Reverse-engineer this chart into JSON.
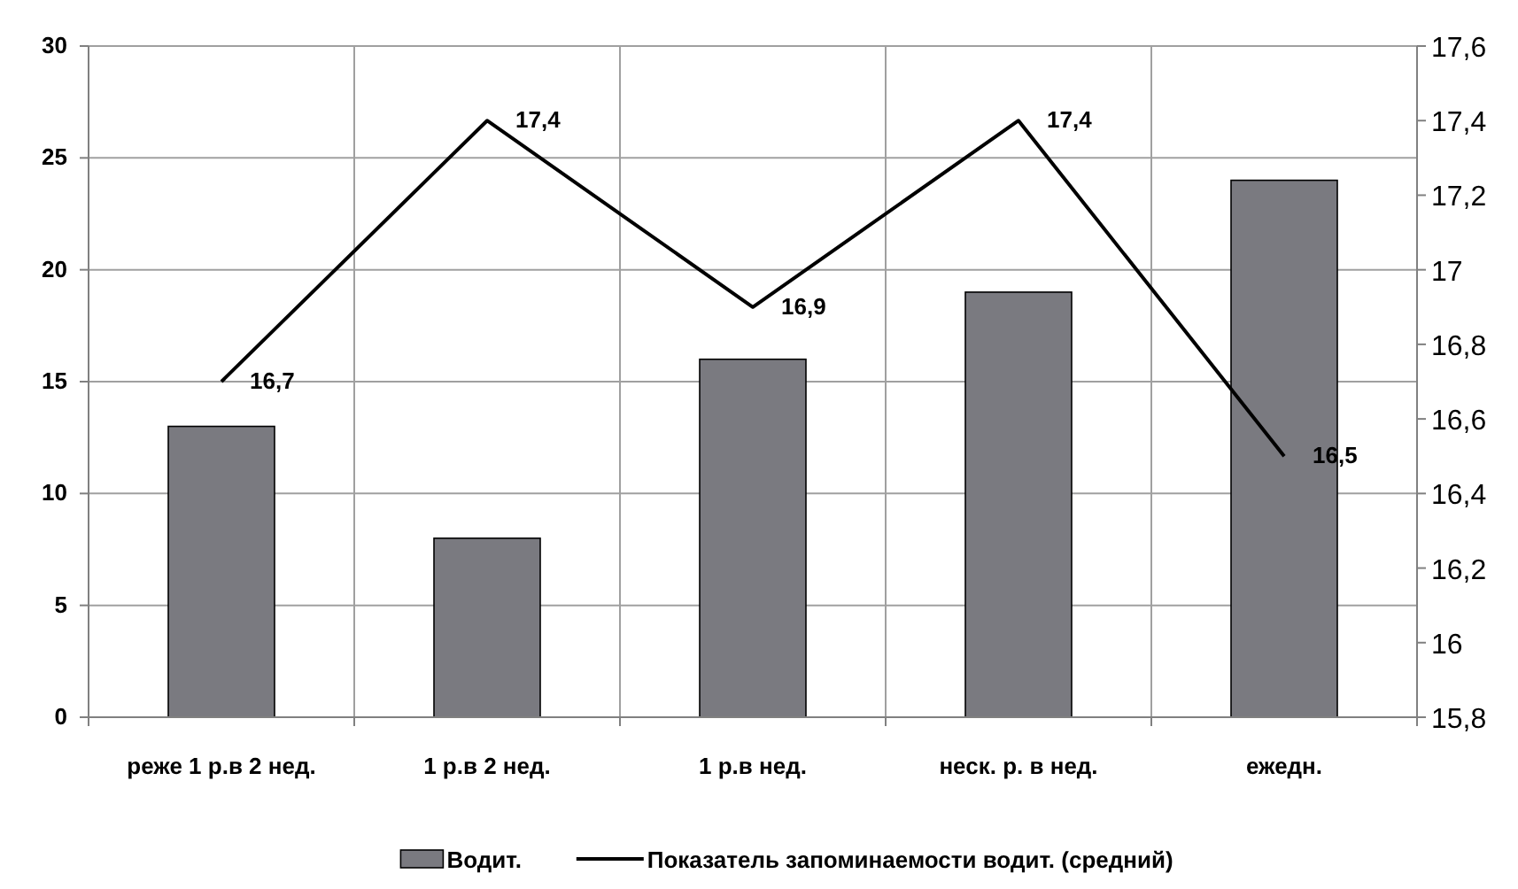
{
  "chart_data": {
    "type": "bar",
    "categories": [
      "реже 1 р.в 2 нед.",
      "1 р.в 2 нед.",
      "1 р.в нед.",
      "неск. р. в нед.",
      "ежедн."
    ],
    "series": [
      {
        "name": "Водит.",
        "color": "#7a7a80",
        "values": [
          13,
          8,
          16,
          19,
          24
        ]
      },
      {
        "name": "Показатель запоминаемости водит. (средний)",
        "type": "line",
        "axis": "y2",
        "color": "#000000",
        "values": [
          16.7,
          17.4,
          16.9,
          17.4,
          16.5
        ],
        "value_labels": [
          "16,7",
          "17,4",
          "16,9",
          "17,4",
          "16,5"
        ]
      }
    ],
    "ylim": [
      0,
      30
    ],
    "yticks": [
      0,
      5,
      10,
      15,
      20,
      25,
      30
    ],
    "y2lim": [
      15.8,
      17.6
    ],
    "y2ticks": [
      {
        "value": 15.8,
        "label": "15,8"
      },
      {
        "value": 16,
        "label": "16"
      },
      {
        "value": 16.2,
        "label": "16,2"
      },
      {
        "value": 16.4,
        "label": "16,4"
      },
      {
        "value": 16.6,
        "label": "16,6"
      },
      {
        "value": 16.8,
        "label": "16,8"
      },
      {
        "value": 17,
        "label": "17"
      },
      {
        "value": 17.2,
        "label": "17,2"
      },
      {
        "value": 17.4,
        "label": "17,4"
      },
      {
        "value": 17.6,
        "label": "17,6"
      }
    ],
    "grid": true,
    "legend": "bottom",
    "marker": "none",
    "line_style": "solid"
  }
}
